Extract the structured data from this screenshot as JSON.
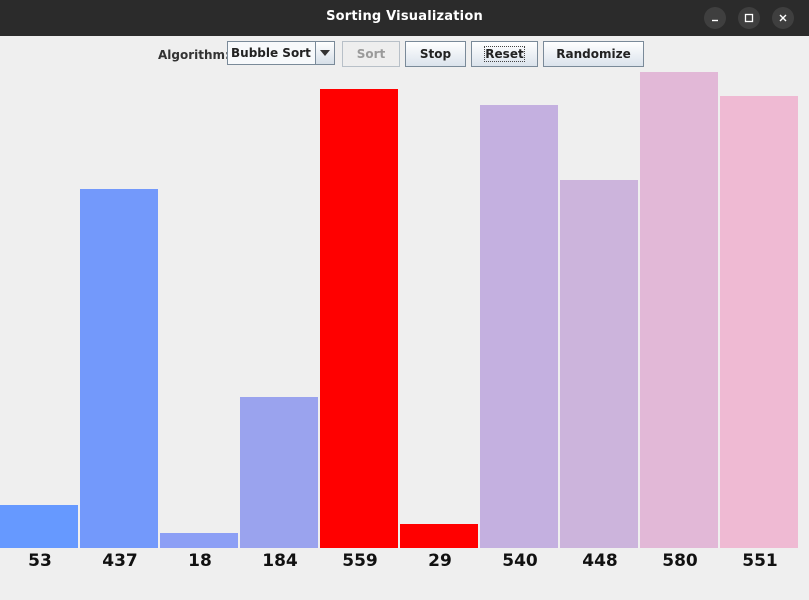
{
  "window": {
    "title": "Sorting Visualization"
  },
  "toolbar": {
    "algorithm_label": "Algorithm:",
    "algorithm_selected": "Bubble Sort",
    "sort_label": "Sort",
    "stop_label": "Stop",
    "reset_label": "Reset",
    "randomize_label": "Randomize"
  },
  "chart_data": {
    "type": "bar",
    "categories": [
      "53",
      "437",
      "18",
      "184",
      "559",
      "29",
      "540",
      "448",
      "580",
      "551"
    ],
    "values": [
      53,
      437,
      18,
      184,
      559,
      29,
      540,
      448,
      580,
      551
    ],
    "colors": [
      "#6699ff",
      "#7399fb",
      "#8c9ff5",
      "#9aa3ee",
      "#ff0000",
      "#ff0000",
      "#c4b0e0",
      "#ccb4dc",
      "#e2b8d7",
      "#efbad3"
    ],
    "ylim": [
      0,
      580
    ],
    "highlighted": [
      "559",
      "29"
    ]
  }
}
